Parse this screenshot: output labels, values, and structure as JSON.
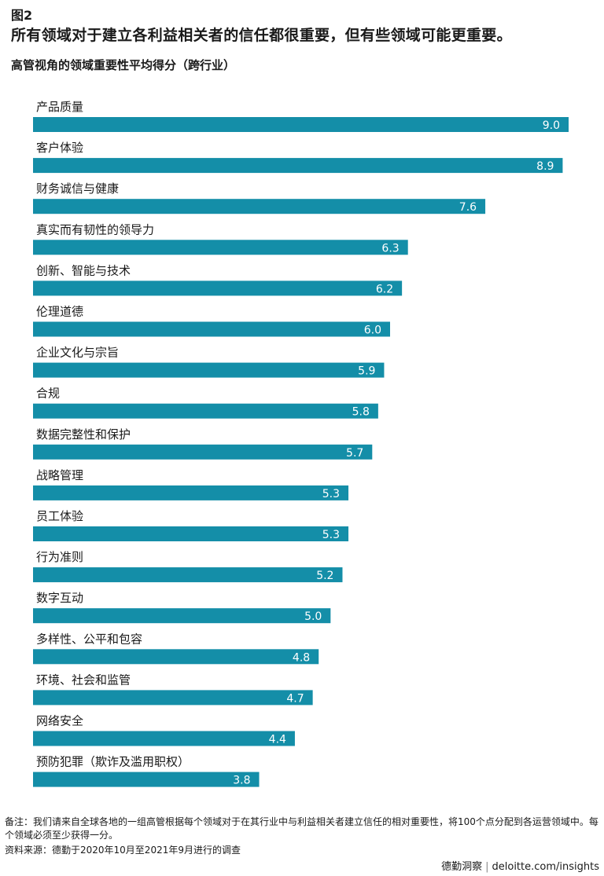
{
  "header": {
    "figure_label": "图2",
    "title": "所有领域对于建立各利益相关者的信任都很重要，但有些领域可能更重要。",
    "subtitle": "高管视角的领域重要性平均得分（跨行业）"
  },
  "chart_data": {
    "type": "bar",
    "orientation": "horizontal",
    "categories": [
      "产品质量",
      "客户体验",
      "财务诚信与健康",
      "真实而有韧性的领导力",
      "创新、智能与技术",
      "伦理道德",
      "企业文化与宗旨",
      "合规",
      "数据完整性和保护",
      "战略管理",
      "员工体验",
      "行为准则",
      "数字互动",
      "多样性、公平和包容",
      "环境、社会和监管",
      "网络安全",
      "预防犯罪（欺诈及滥用职权）"
    ],
    "values": [
      9.0,
      8.9,
      7.6,
      6.3,
      6.2,
      6.0,
      5.9,
      5.8,
      5.7,
      5.3,
      5.3,
      5.2,
      5.0,
      4.8,
      4.7,
      4.4,
      3.8
    ],
    "value_labels": [
      "9.0",
      "8.9",
      "7.6",
      "6.3",
      "6.2",
      "6.0",
      "5.9",
      "5.8",
      "5.7",
      "5.3",
      "5.3",
      "5.2",
      "5.0",
      "4.8",
      "4.7",
      "4.4",
      "3.8"
    ],
    "xlim": [
      0,
      9.0
    ],
    "bar_color": "#148ea8",
    "grid": false,
    "legend": "none"
  },
  "footer": {
    "note": "备注：我们请来自全球各地的一组高管根据每个领域对于在其行业中与利益相关者建立信任的相对重要性，将100个点分配到各运营领域中。每个领域必须至少获得一分。",
    "source": "资料来源：德勤于2020年10月至2021年9月进行的调查",
    "brand_name": "德勤洞察",
    "separator": "|",
    "brand_url": "deloitte.com/insights"
  }
}
